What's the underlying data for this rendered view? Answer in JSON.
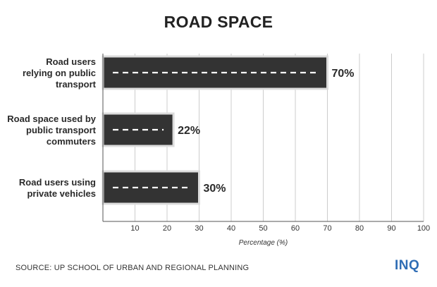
{
  "chart_data": {
    "type": "bar",
    "orientation": "horizontal",
    "title": "ROAD SPACE",
    "categories": [
      "Road users relying on public transport",
      "Road space used by public transport commuters",
      "Road users using private vehicles"
    ],
    "category_lines": [
      [
        "Road users",
        "relying on public",
        "transport"
      ],
      [
        "Road space used by",
        "public transport",
        "commuters"
      ],
      [
        "Road users using",
        "private vehicles"
      ]
    ],
    "values": [
      70,
      22,
      30
    ],
    "value_labels": [
      "70%",
      "22%",
      "30%"
    ],
    "xlabel": "Percentage (%)",
    "xlim": [
      0,
      100
    ],
    "xticks": [
      "10",
      "20",
      "30",
      "40",
      "50",
      "60",
      "70",
      "80",
      "90",
      "100"
    ],
    "grid": true,
    "bar_color": "#333333",
    "bar_edge_color": "#dcdcdc",
    "grid_color": "#cccccc"
  },
  "source": "SOURCE: UP SCHOOL OF URBAN AND REGIONAL PLANNING",
  "logo_text": "INQ"
}
